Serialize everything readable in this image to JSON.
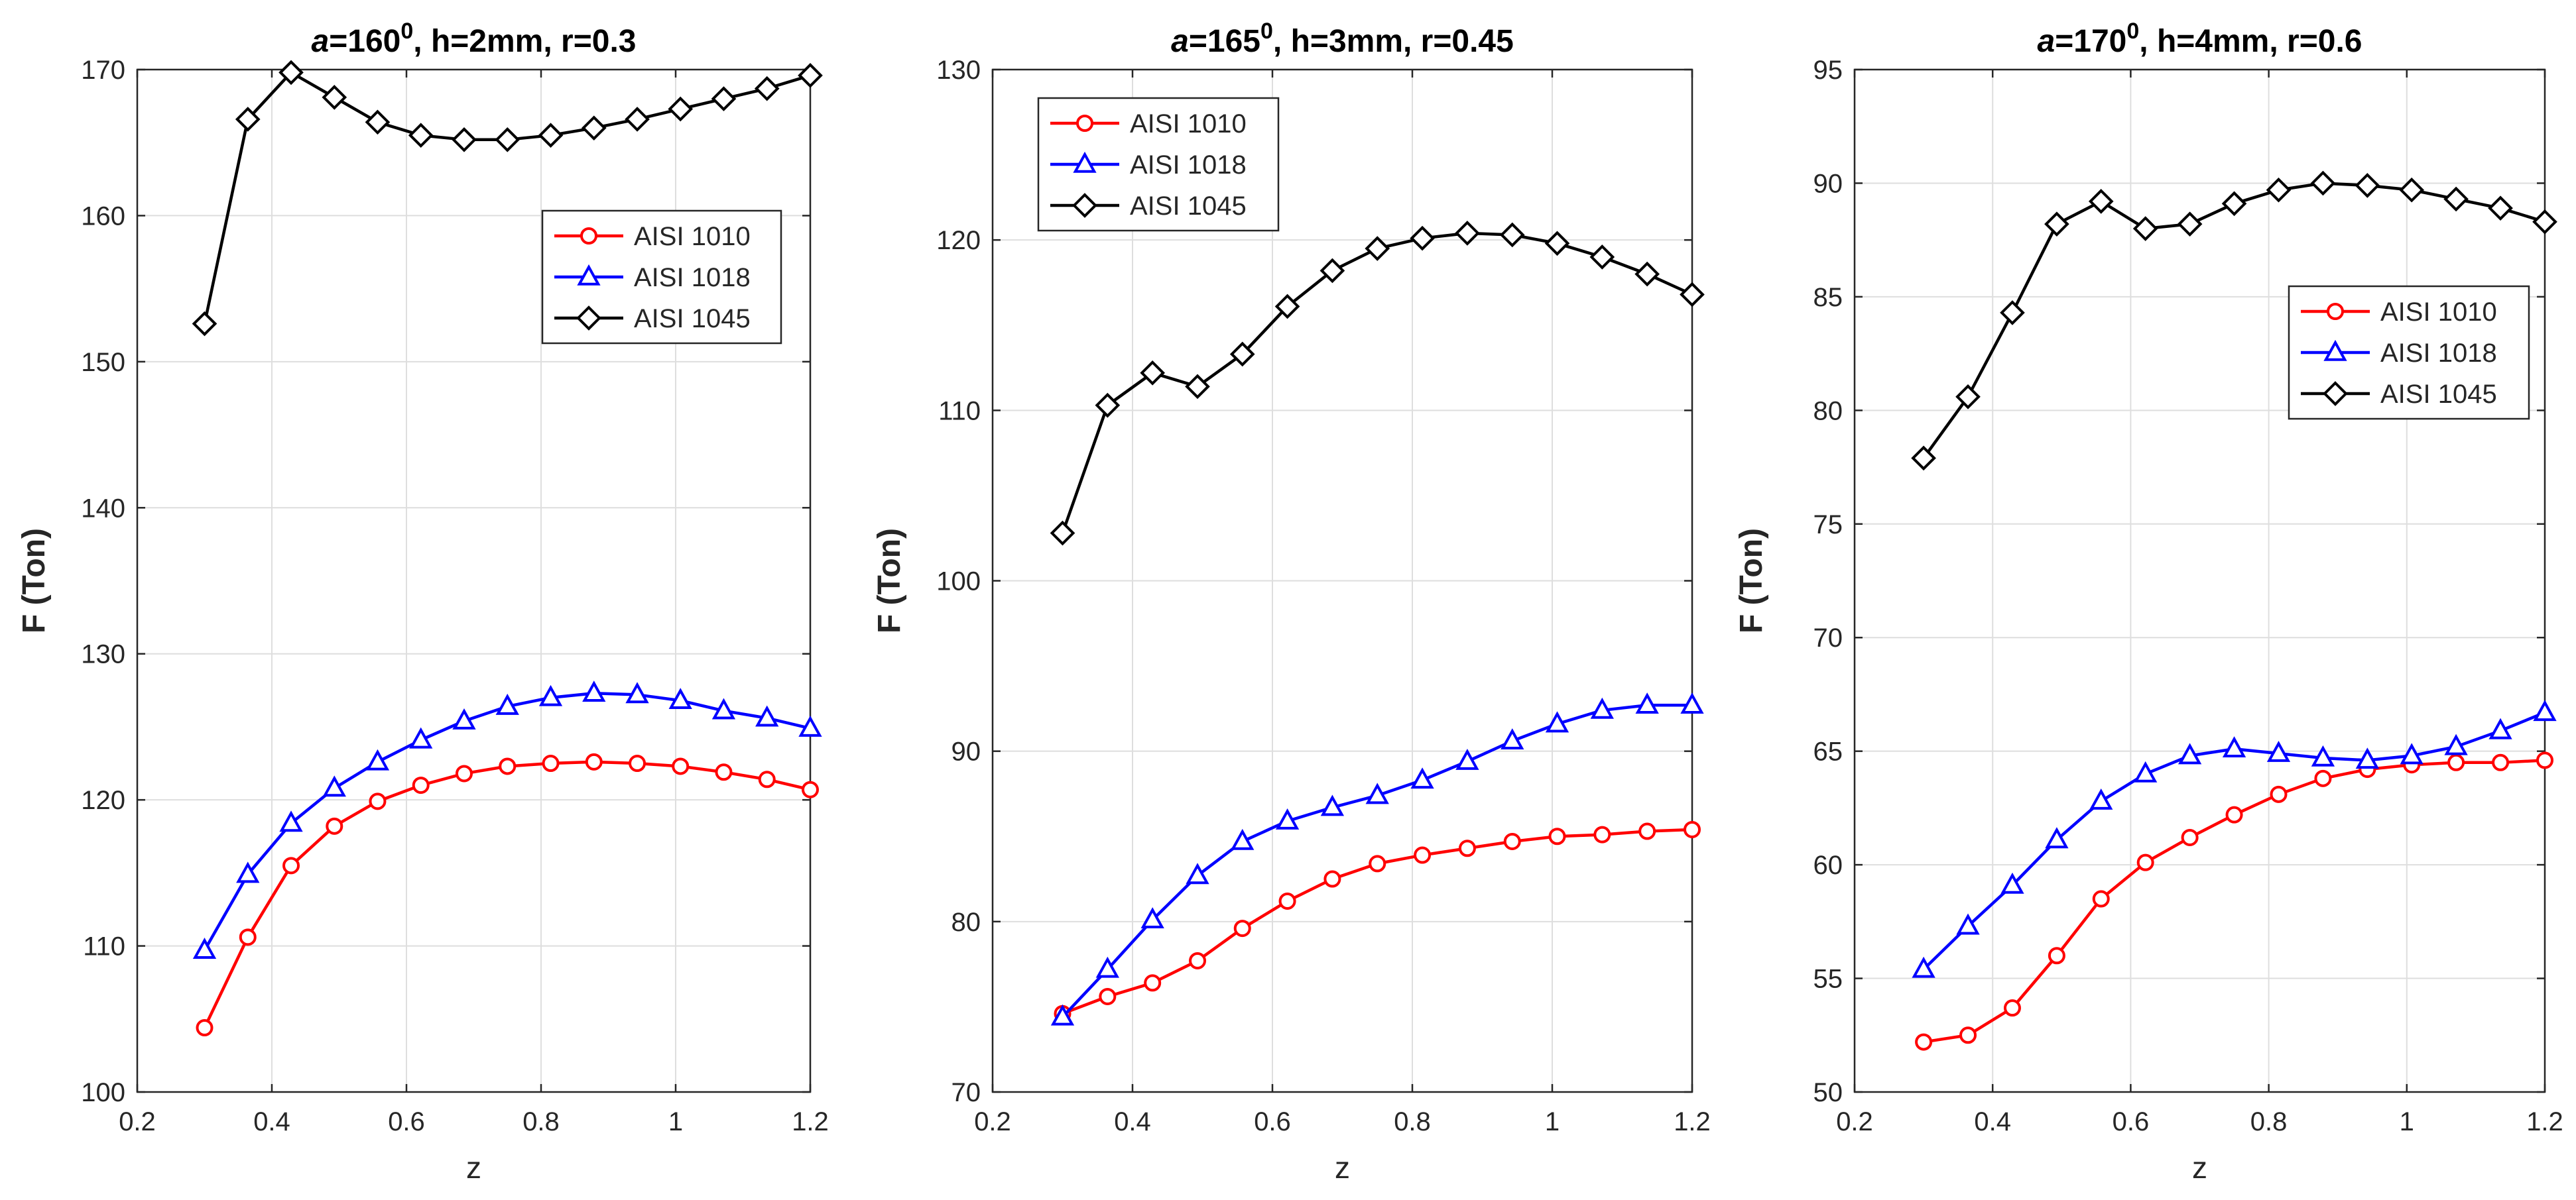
{
  "chart_data": [
    {
      "type": "line",
      "title_prefix": "a",
      "title_main": "=160",
      "title_sup": "0",
      "title_rest": ", h=2mm,  r=0.3",
      "xlabel": "z",
      "ylabel": "F (Ton)",
      "xlim": [
        0.2,
        1.2
      ],
      "ylim": [
        100,
        170
      ],
      "xticks": [
        0.2,
        0.4,
        0.6,
        0.8,
        1.0,
        1.2
      ],
      "xtick_labels": [
        "0.2",
        "0.4",
        "0.6",
        "0.8",
        "1",
        "1.2"
      ],
      "yticks": [
        100,
        110,
        120,
        130,
        140,
        150,
        160,
        170
      ],
      "ytick_labels": [
        "100",
        "110",
        "120",
        "130",
        "140",
        "150",
        "160",
        "170"
      ],
      "grid": true,
      "legend_position": "upper-right",
      "x": [
        0.3,
        0.3643,
        0.4286,
        0.4929,
        0.5571,
        0.6214,
        0.6857,
        0.75,
        0.8143,
        0.8786,
        0.9429,
        1.0071,
        1.0714,
        1.1357,
        1.2
      ],
      "series": [
        {
          "name": "AISI 1010",
          "color": "#ff0000",
          "marker": "circle",
          "values": [
            104.4,
            110.6,
            115.5,
            118.2,
            119.9,
            121.0,
            121.8,
            122.3,
            122.5,
            122.6,
            122.5,
            122.3,
            121.9,
            121.4,
            120.7
          ]
        },
        {
          "name": "AISI 1018",
          "color": "#0000ff",
          "marker": "triangle",
          "values": [
            109.7,
            114.9,
            118.4,
            120.8,
            122.6,
            124.1,
            125.4,
            126.4,
            127.0,
            127.3,
            127.2,
            126.8,
            126.1,
            125.6,
            124.9
          ]
        },
        {
          "name": "AISI 1045",
          "color": "#000000",
          "marker": "diamond",
          "values": [
            152.6,
            166.6,
            169.8,
            168.1,
            166.4,
            165.5,
            165.2,
            165.2,
            165.5,
            166.0,
            166.6,
            167.3,
            168.0,
            168.7,
            169.6
          ]
        }
      ]
    },
    {
      "type": "line",
      "title_prefix": "a",
      "title_main": "=165",
      "title_sup": "0",
      "title_rest": ", h=3mm,  r=0.45",
      "xlabel": "z",
      "ylabel": "F (Ton)",
      "xlim": [
        0.2,
        1.2
      ],
      "ylim": [
        70,
        130
      ],
      "xticks": [
        0.2,
        0.4,
        0.6,
        0.8,
        1.0,
        1.2
      ],
      "xtick_labels": [
        "0.2",
        "0.4",
        "0.6",
        "0.8",
        "1",
        "1.2"
      ],
      "yticks": [
        70,
        80,
        90,
        100,
        110,
        120,
        130
      ],
      "ytick_labels": [
        "70",
        "80",
        "90",
        "100",
        "110",
        "120",
        "130"
      ],
      "grid": true,
      "legend_position": "upper-left",
      "x": [
        0.3,
        0.3643,
        0.4286,
        0.4929,
        0.5571,
        0.6214,
        0.6857,
        0.75,
        0.8143,
        0.8786,
        0.9429,
        1.0071,
        1.0714,
        1.1357,
        1.2
      ],
      "series": [
        {
          "name": "AISI 1010",
          "color": "#ff0000",
          "marker": "circle",
          "values": [
            74.6,
            75.6,
            76.4,
            77.7,
            79.6,
            81.2,
            82.5,
            83.4,
            83.9,
            84.3,
            84.7,
            85.0,
            85.1,
            85.3,
            85.4
          ]
        },
        {
          "name": "AISI 1018",
          "color": "#0000ff",
          "marker": "triangle",
          "values": [
            74.4,
            77.2,
            80.1,
            82.7,
            84.7,
            85.9,
            86.7,
            87.4,
            88.3,
            89.4,
            90.6,
            91.6,
            92.4,
            92.7,
            92.7
          ]
        },
        {
          "name": "AISI 1045",
          "color": "#000000",
          "marker": "diamond",
          "values": [
            102.8,
            110.3,
            112.2,
            111.4,
            113.3,
            116.1,
            118.2,
            119.5,
            120.1,
            120.4,
            120.3,
            119.8,
            119.0,
            118.0,
            116.8
          ]
        }
      ]
    },
    {
      "type": "line",
      "title_prefix": "a",
      "title_main": "=170",
      "title_sup": "0",
      "title_rest": ", h=4mm,  r=0.6",
      "xlabel": "z",
      "ylabel": "F (Ton)",
      "xlim": [
        0.2,
        1.2
      ],
      "ylim": [
        50,
        95
      ],
      "xticks": [
        0.2,
        0.4,
        0.6,
        0.8,
        1.0,
        1.2
      ],
      "xtick_labels": [
        "0.2",
        "0.4",
        "0.6",
        "0.8",
        "1",
        "1.2"
      ],
      "yticks": [
        50,
        55,
        60,
        65,
        70,
        75,
        80,
        85,
        90,
        95
      ],
      "ytick_labels": [
        "50",
        "55",
        "60",
        "65",
        "70",
        "75",
        "80",
        "85",
        "90",
        "95"
      ],
      "grid": true,
      "legend_position": "right",
      "x": [
        0.3,
        0.3643,
        0.4286,
        0.4929,
        0.5571,
        0.6214,
        0.6857,
        0.75,
        0.8143,
        0.8786,
        0.9429,
        1.0071,
        1.0714,
        1.1357,
        1.2
      ],
      "series": [
        {
          "name": "AISI 1010",
          "color": "#ff0000",
          "marker": "circle",
          "values": [
            52.2,
            52.5,
            53.7,
            56.0,
            58.5,
            60.1,
            61.2,
            62.2,
            63.1,
            63.8,
            64.2,
            64.4,
            64.5,
            64.5,
            64.6
          ]
        },
        {
          "name": "AISI 1018",
          "color": "#0000ff",
          "marker": "triangle",
          "values": [
            55.4,
            57.3,
            59.1,
            61.1,
            62.8,
            64.0,
            64.8,
            65.1,
            64.9,
            64.7,
            64.6,
            64.8,
            65.2,
            65.9,
            66.7
          ]
        },
        {
          "name": "AISI 1045",
          "color": "#000000",
          "marker": "diamond",
          "values": [
            77.9,
            80.6,
            84.3,
            88.2,
            89.2,
            88.0,
            88.2,
            89.1,
            89.7,
            90.0,
            89.9,
            89.7,
            89.3,
            88.9,
            88.3
          ]
        }
      ]
    }
  ]
}
